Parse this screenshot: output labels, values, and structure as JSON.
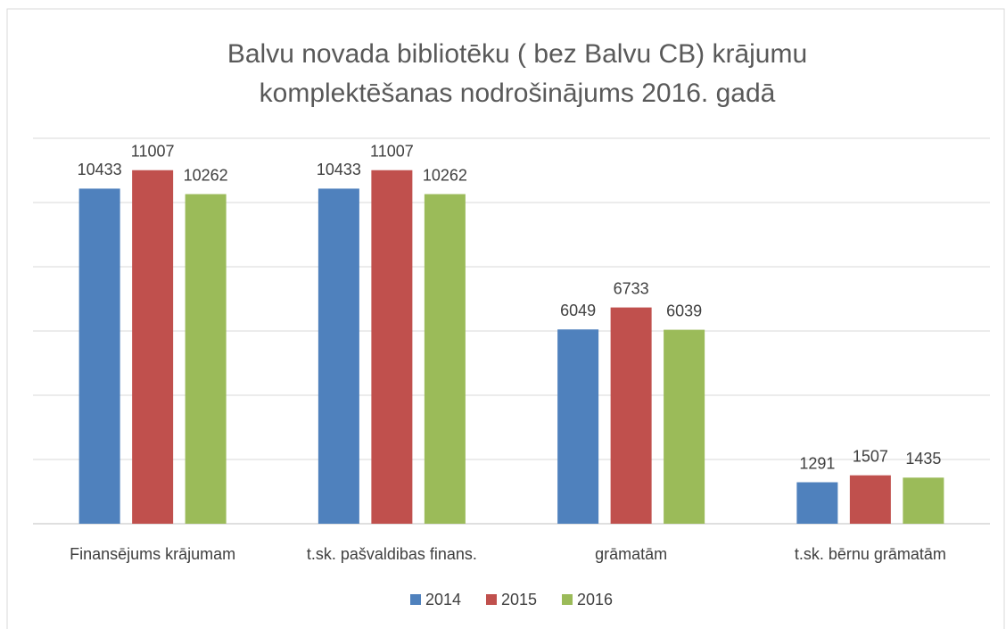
{
  "chart_data": {
    "type": "bar",
    "title": [
      "Balvu novada bibliotēku ( bez Balvu CB) krājumu",
      "komplektēšanas nodrošinājums 2016. gadā"
    ],
    "categories": [
      "Finansējums krājumam",
      "t.sk. pašvaldibas finans.",
      "grāmatām",
      "t.sk. bērnu grāmatām"
    ],
    "series": [
      {
        "name": "2014",
        "color": "#4f81bd",
        "values": [
          10433,
          10433,
          6049,
          1291
        ]
      },
      {
        "name": "2015",
        "color": "#c0504d",
        "values": [
          11007,
          11007,
          6733,
          1507
        ]
      },
      {
        "name": "2016",
        "color": "#9bbb59",
        "values": [
          10262,
          10262,
          6039,
          1435
        ]
      }
    ],
    "ylim": [
      0,
      12000
    ],
    "yticks": [
      0,
      2000,
      4000,
      6000,
      8000,
      10000,
      12000
    ],
    "grid": true,
    "legend": "bottom"
  }
}
